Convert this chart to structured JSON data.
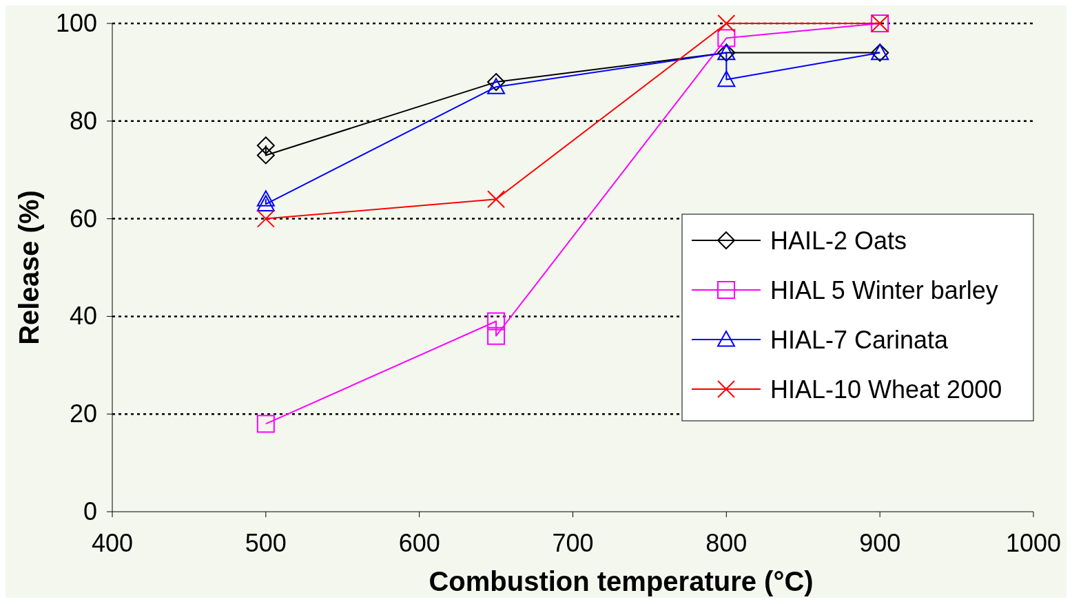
{
  "chart_data": {
    "type": "line",
    "xlabel": "Combustion temperature (°C)",
    "ylabel": "Release (%)",
    "xlim": [
      400,
      1000
    ],
    "xticks": [
      400,
      500,
      600,
      700,
      800,
      900,
      1000
    ],
    "ylim": [
      0,
      100
    ],
    "yticks": [
      0,
      20,
      40,
      60,
      80,
      100
    ],
    "grid": "y",
    "legend": "right",
    "series": [
      {
        "name": "HAIL-2 Oats",
        "color": "#000000",
        "marker": "diamond",
        "x": [
          500,
          500,
          650,
          800,
          900
        ],
        "values": [
          75,
          73,
          88,
          94,
          94
        ]
      },
      {
        "name": "HIAL 5 Winter barley",
        "color": "#ff00ff",
        "marker": "square",
        "x": [
          500,
          650,
          650,
          800,
          900
        ],
        "values": [
          18,
          39,
          36,
          97,
          100
        ]
      },
      {
        "name": "HIAL-7 Carinata",
        "color": "#0000ff",
        "marker": "triangle",
        "x": [
          500,
          500,
          650,
          800,
          800,
          900
        ],
        "values": [
          64,
          63,
          87,
          94,
          88.5,
          94
        ]
      },
      {
        "name": "HIAL-10 Wheat 2000",
        "color": "#ff0000",
        "marker": "cross",
        "x": [
          500,
          650,
          800,
          900
        ],
        "values": [
          60,
          64,
          100,
          100
        ]
      }
    ]
  }
}
